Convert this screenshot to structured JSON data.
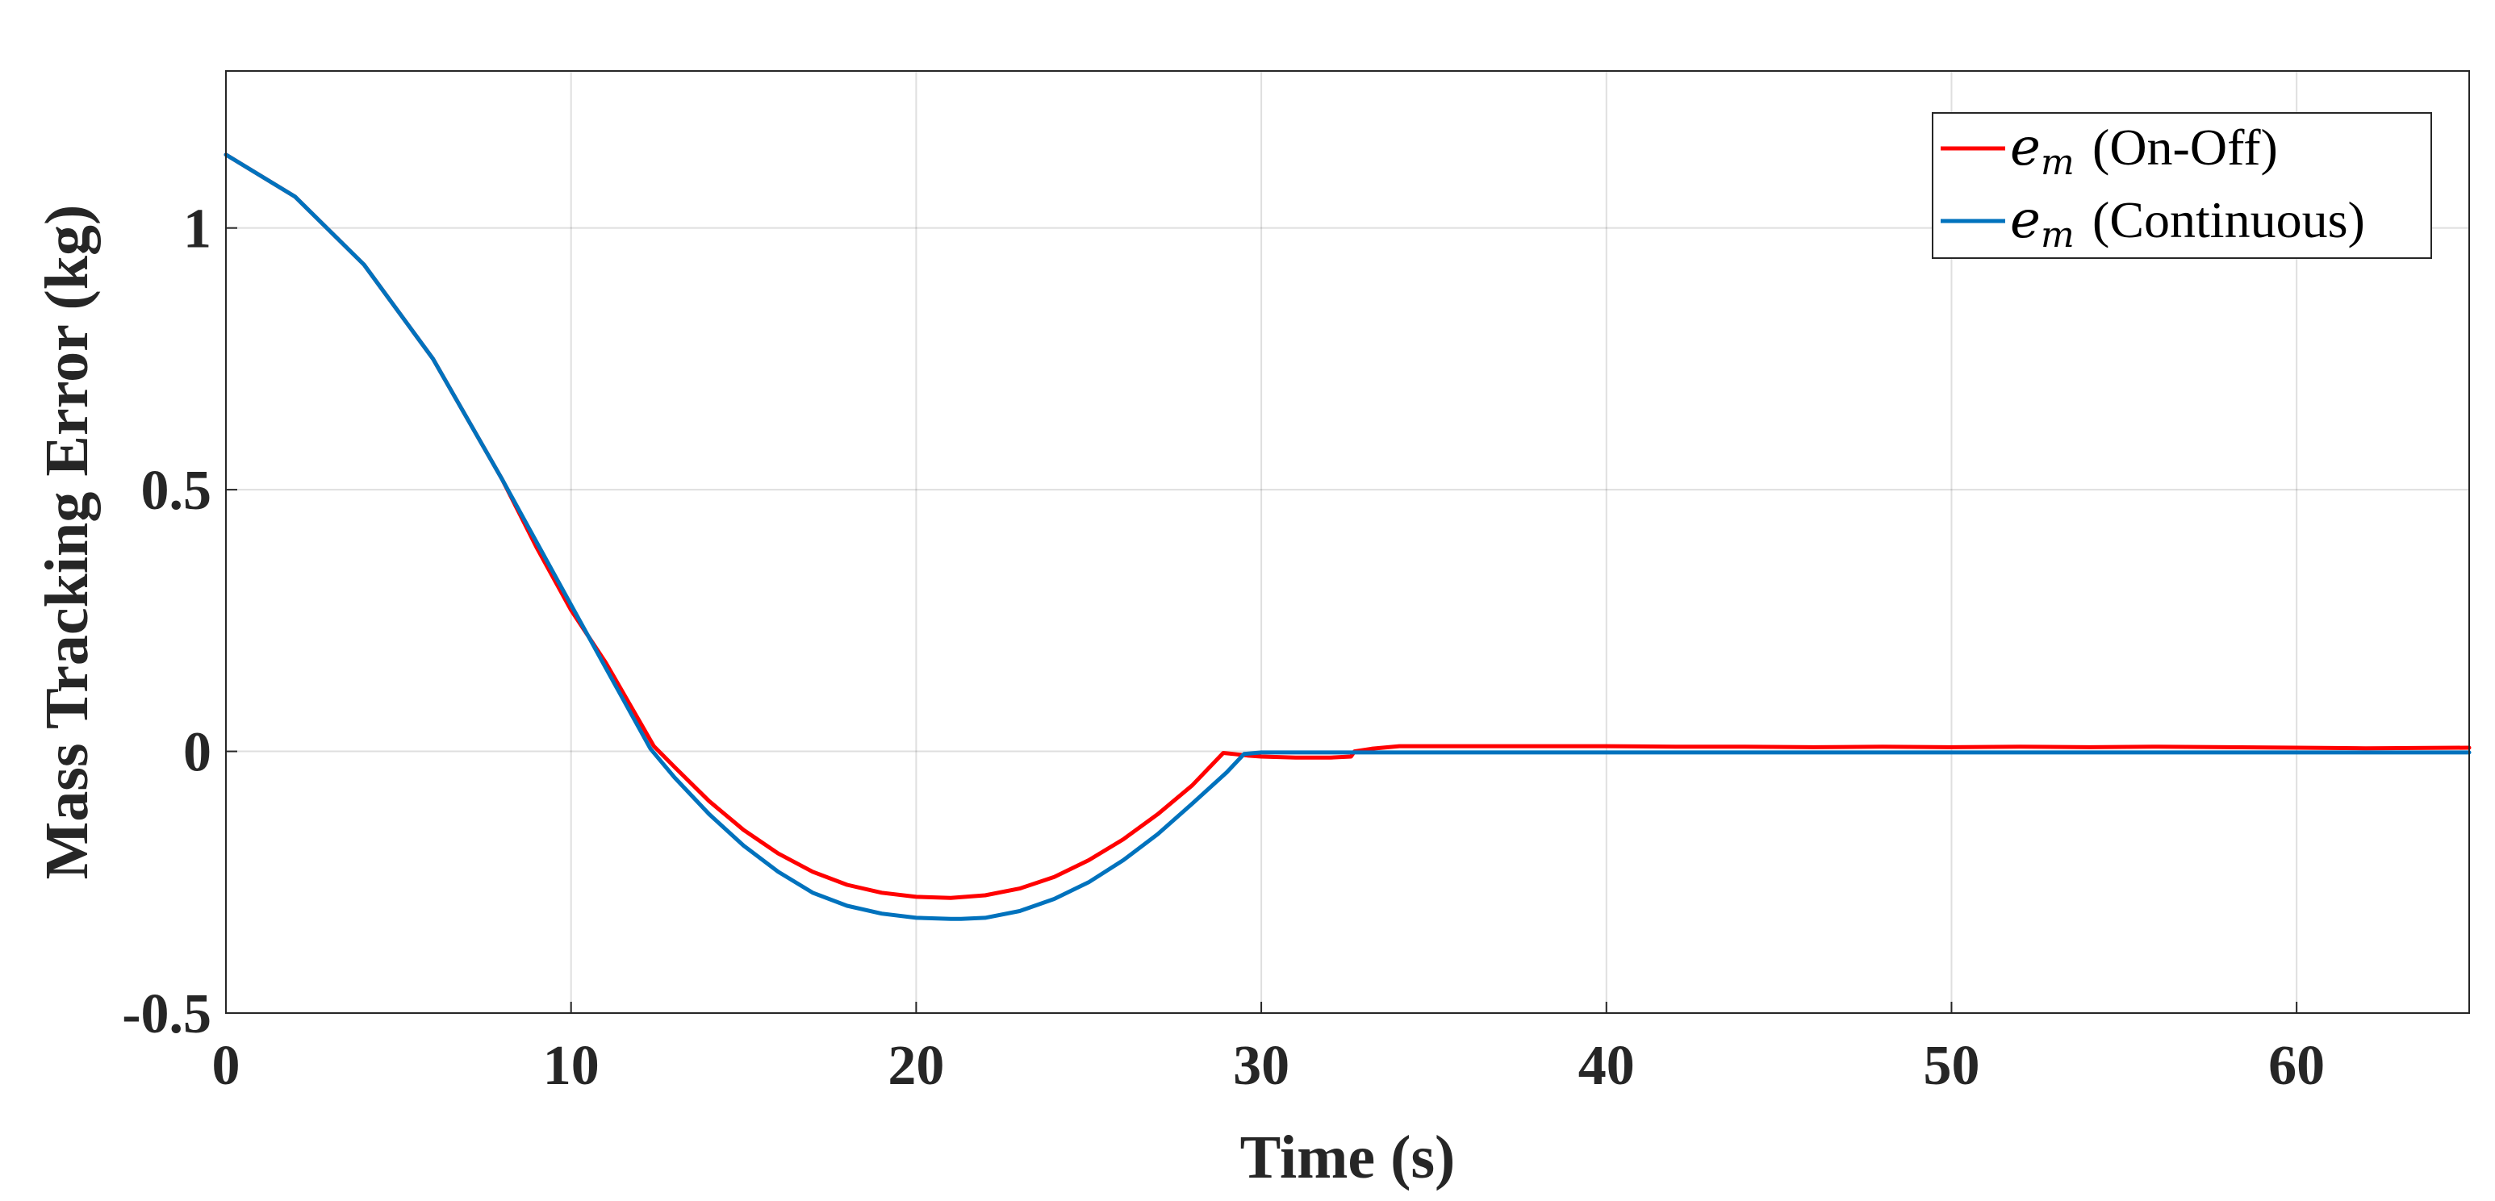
{
  "chart_data": {
    "type": "line",
    "xlabel": "Time (s)",
    "ylabel": "Mass Tracking Error (kg)",
    "xlim": [
      0,
      65
    ],
    "ylim": [
      -0.5,
      1.3
    ],
    "xticks": [
      0,
      10,
      20,
      30,
      40,
      50,
      60
    ],
    "xtick_labels": [
      "0",
      "10",
      "20",
      "30",
      "40",
      "50",
      "60"
    ],
    "yticks": [
      -0.5,
      0,
      0.5,
      1
    ],
    "ytick_labels": [
      "-0.5",
      "0",
      "0.5",
      "1"
    ],
    "grid": true,
    "legend": {
      "placement": "top-right",
      "entries": [
        {
          "symbol": "e",
          "subscript": "m",
          "text": "(On-Off)"
        },
        {
          "symbol": "e",
          "subscript": "m",
          "text": "(Continuous)"
        }
      ]
    },
    "series": [
      {
        "name": "e_m (On-Off)",
        "color": "#ff0000",
        "x": [
          0,
          2,
          4,
          6,
          8,
          9,
          10,
          11,
          12.4,
          13,
          14,
          15,
          16,
          17,
          18,
          19,
          20,
          21,
          22,
          23,
          24,
          25,
          26,
          27,
          28,
          28.9,
          29.2,
          29.6,
          30,
          31,
          32,
          32.6,
          32.7,
          33.2,
          34,
          36,
          38,
          40,
          42,
          44,
          46,
          48,
          50,
          52,
          54,
          56,
          58,
          60,
          62,
          65
        ],
        "y": [
          1.14,
          1.06,
          0.93,
          0.75,
          0.52,
          0.39,
          0.27,
          0.17,
          0.01,
          -0.03,
          -0.095,
          -0.15,
          -0.195,
          -0.23,
          -0.255,
          -0.27,
          -0.278,
          -0.28,
          -0.275,
          -0.262,
          -0.24,
          -0.208,
          -0.168,
          -0.12,
          -0.065,
          -0.003,
          -0.005,
          -0.008,
          -0.01,
          -0.012,
          -0.012,
          -0.01,
          0.0,
          0.005,
          0.01,
          0.01,
          0.01,
          0.01,
          0.009,
          0.009,
          0.008,
          0.009,
          0.008,
          0.009,
          0.008,
          0.009,
          0.008,
          0.007,
          0.006,
          0.007
        ]
      },
      {
        "name": "e_m (Continuous)",
        "color": "#0072bd",
        "x": [
          0,
          2,
          4,
          6,
          8,
          9,
          10,
          11,
          12.3,
          13,
          14,
          15,
          16,
          17,
          18,
          19,
          20,
          21,
          21.3,
          22,
          23,
          24,
          25,
          26,
          27,
          28,
          29,
          29.5,
          30,
          35,
          40,
          45,
          50,
          55,
          60,
          65
        ],
        "y": [
          1.14,
          1.06,
          0.93,
          0.75,
          0.52,
          0.4,
          0.28,
          0.16,
          0.005,
          -0.05,
          -0.12,
          -0.18,
          -0.23,
          -0.27,
          -0.295,
          -0.31,
          -0.318,
          -0.32,
          -0.32,
          -0.318,
          -0.305,
          -0.282,
          -0.25,
          -0.208,
          -0.158,
          -0.1,
          -0.04,
          -0.005,
          -0.002,
          -0.002,
          -0.002,
          -0.002,
          -0.002,
          -0.002,
          -0.002,
          -0.002
        ]
      }
    ]
  }
}
